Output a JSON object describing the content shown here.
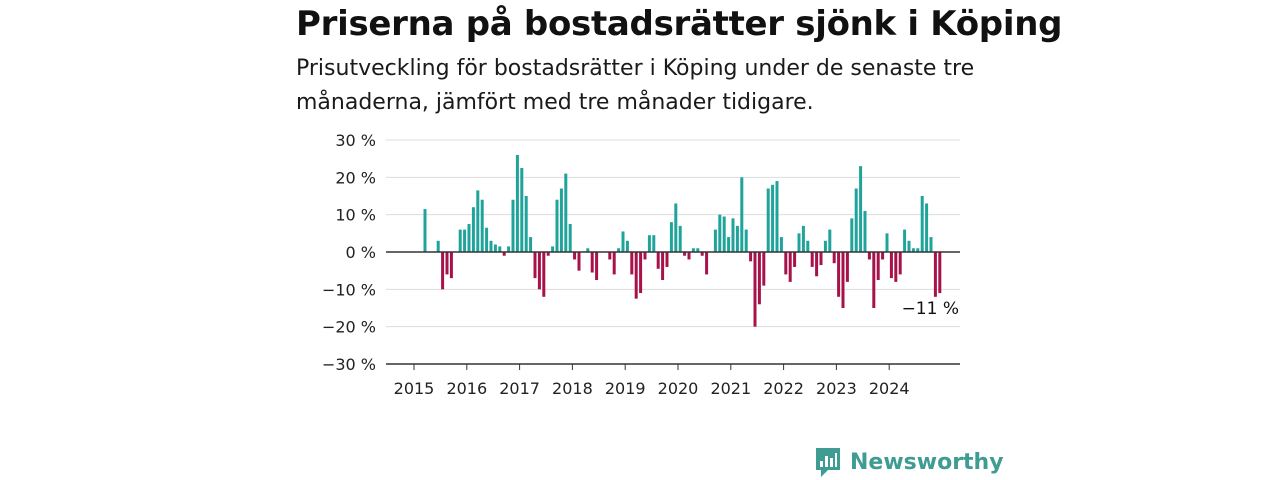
{
  "title": "Priserna på bostadsrätter sjönk i Köping",
  "subtitle": "Prisutveckling för bostadsrätter i Köping under de senaste tre månaderna, jämfört med tre månader tidigare.",
  "brand": {
    "name": "Newsworthy",
    "icon": "newsworthy-logo-icon"
  },
  "colors": {
    "positive": "#1fa39a",
    "negative": "#a8124a",
    "grid": "#dddddd",
    "axis": "#333333"
  },
  "chart_data": {
    "type": "bar",
    "ylim": [
      -30,
      30
    ],
    "y_ticks": [
      30,
      20,
      10,
      0,
      -10,
      -20,
      -30
    ],
    "y_tick_labels": [
      "30 %",
      "20 %",
      "10 %",
      "0 %",
      "−10 %",
      "−20 %",
      "−30 %"
    ],
    "x_tick_labels": [
      "2015",
      "2016",
      "2017",
      "2018",
      "2019",
      "2020",
      "2021",
      "2022",
      "2023",
      "2024"
    ],
    "x_start": "2015-01",
    "annotation": {
      "text": "−11 %",
      "point": "2024-12"
    },
    "grid": true,
    "series": [
      {
        "values": [
          null,
          null,
          11.5,
          null,
          null,
          3,
          -10,
          -6,
          -7,
          null,
          6,
          6,
          7.5,
          12,
          16.5,
          14,
          6.5,
          3,
          2,
          1.5,
          -1,
          1.5,
          14,
          26,
          22.5,
          15,
          4,
          -7,
          -10,
          -12,
          -1,
          1.5,
          14,
          17,
          21,
          7.5,
          -2,
          -5,
          null,
          1,
          -5.5,
          -7.5,
          null,
          null,
          -2,
          -6,
          1,
          5.5,
          3,
          -6,
          -12.5,
          -11,
          -2,
          4.5,
          4.5,
          -4.5,
          -7.5,
          -4,
          8,
          13,
          7,
          -1,
          -2,
          1,
          1,
          -1,
          -6,
          null,
          6,
          10,
          9.5,
          4,
          9,
          7,
          20,
          6,
          -2.5,
          -20,
          -14,
          -9,
          17,
          18,
          19,
          4,
          -6,
          -8,
          -4,
          5,
          7,
          3,
          -4,
          -6.5,
          -3.5,
          3,
          6,
          -3,
          -12,
          -15,
          -8,
          9,
          17,
          23,
          11,
          -2,
          -15,
          -7.5,
          -2,
          5,
          -7,
          -8,
          -6,
          6,
          3,
          1,
          1,
          15,
          13,
          4,
          -12,
          -11
        ]
      }
    ]
  }
}
